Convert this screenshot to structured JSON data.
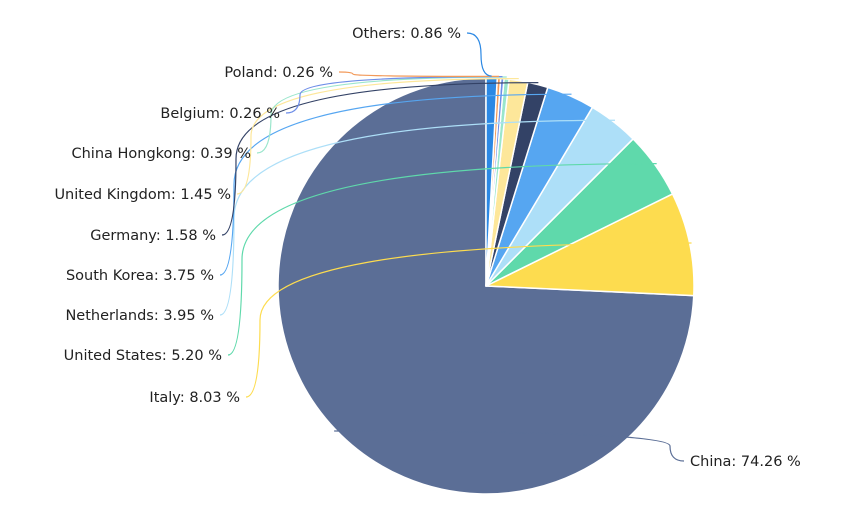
{
  "chart_data": {
    "type": "pie",
    "title": "",
    "label_format": "{name}: {value} %",
    "slices": [
      {
        "name": "China",
        "value": 74.26,
        "color": "#5b6e96"
      },
      {
        "name": "Italy",
        "value": 8.03,
        "color": "#fddc4f"
      },
      {
        "name": "United States",
        "value": 5.2,
        "color": "#5fd9ab"
      },
      {
        "name": "Netherlands",
        "value": 3.95,
        "color": "#addff8"
      },
      {
        "name": "South Korea",
        "value": 3.75,
        "color": "#56a6f1"
      },
      {
        "name": "Germany",
        "value": 1.58,
        "color": "#334266"
      },
      {
        "name": "United Kingdom",
        "value": 1.45,
        "color": "#fde79a"
      },
      {
        "name": "China Hongkong",
        "value": 0.39,
        "color": "#9ae6cc"
      },
      {
        "name": "Belgium",
        "value": 0.26,
        "color": "#6e8ee8"
      },
      {
        "name": "Poland",
        "value": 0.26,
        "color": "#f29a5a"
      },
      {
        "name": "Others",
        "value": 0.86,
        "color": "#2b88e4"
      }
    ],
    "start_angle_deg": 90,
    "direction": "counterclockwise",
    "legend": "none"
  }
}
